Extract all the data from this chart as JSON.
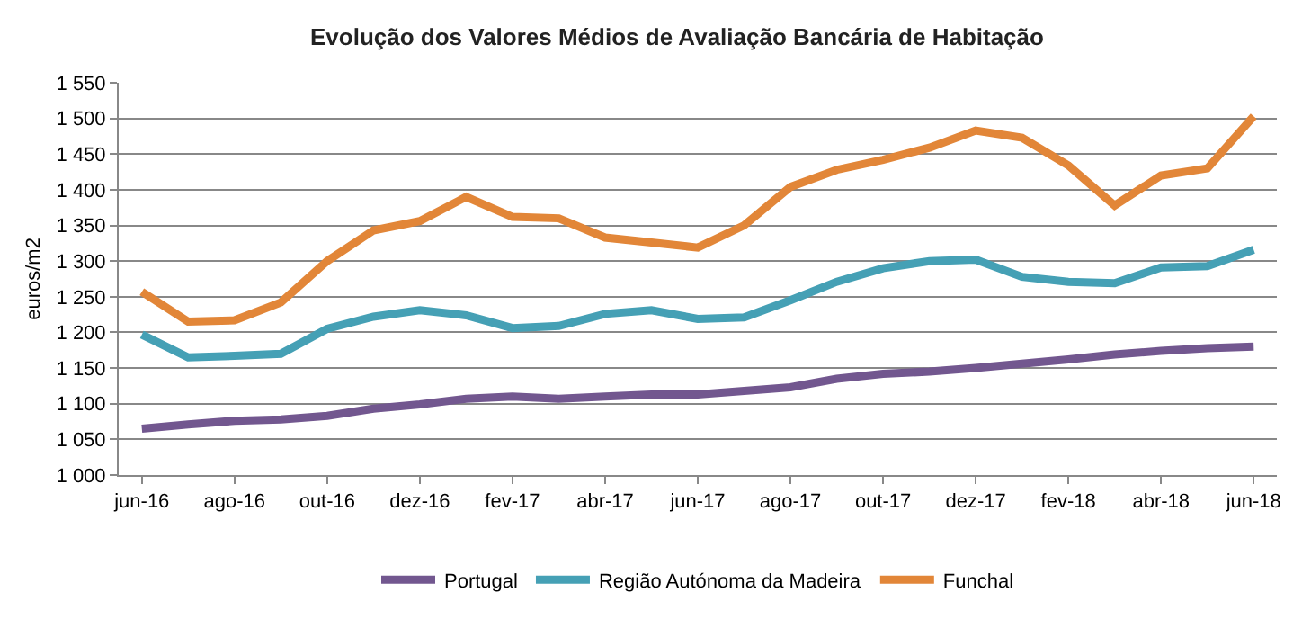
{
  "chart_data": {
    "type": "line",
    "title": "Evolução dos Valores Médios de Avaliação Bancária de Habitação",
    "ylabel": "euros/m2",
    "categories": [
      "jun-16",
      null,
      "ago-16",
      null,
      "out-16",
      null,
      "dez-16",
      null,
      "fev-17",
      null,
      "abr-17",
      null,
      "jun-17",
      null,
      "ago-17",
      null,
      "out-17",
      null,
      "dez-17",
      null,
      "fev-18",
      null,
      "abr-18",
      null,
      "jun-18"
    ],
    "series": [
      {
        "name": "Portugal",
        "color": "#72578f",
        "values": [
          1065,
          1071,
          1076,
          1078,
          1083,
          1093,
          1099,
          1107,
          1110,
          1107,
          1110,
          1113,
          1113,
          1118,
          1123,
          1135,
          1142,
          1145,
          1150,
          1156,
          1162,
          1169,
          1174,
          1178,
          1180
        ]
      },
      {
        "name": "Região Autónoma da Madeira",
        "color": "#45a0b5",
        "values": [
          1197,
          1165,
          1167,
          1170,
          1205,
          1222,
          1231,
          1224,
          1206,
          1209,
          1226,
          1231,
          1219,
          1221,
          1245,
          1271,
          1290,
          1300,
          1302,
          1278,
          1271,
          1269,
          1291,
          1293,
          1316
        ]
      },
      {
        "name": "Funchal",
        "color": "#e28638",
        "values": [
          1257,
          1215,
          1217,
          1242,
          1300,
          1343,
          1356,
          1390,
          1362,
          1360,
          1333,
          1326,
          1319,
          1350,
          1404,
          1428,
          1442,
          1459,
          1483,
          1473,
          1434,
          1378,
          1420,
          1430,
          1503
        ]
      }
    ],
    "ylim": [
      1000,
      1550
    ],
    "yticks": [
      {
        "value": 1000,
        "label": "1 000"
      },
      {
        "value": 1050,
        "label": "1 050"
      },
      {
        "value": 1100,
        "label": "1 100"
      },
      {
        "value": 1150,
        "label": "1 150"
      },
      {
        "value": 1200,
        "label": "1 200"
      },
      {
        "value": 1250,
        "label": "1 250"
      },
      {
        "value": 1300,
        "label": "1 300"
      },
      {
        "value": 1350,
        "label": "1 350"
      },
      {
        "value": 1400,
        "label": "1 400"
      },
      {
        "value": 1450,
        "label": "1 450"
      },
      {
        "value": 1500,
        "label": "1 500"
      },
      {
        "value": 1550,
        "label": "1 550"
      }
    ],
    "grid": "y",
    "legend": "bottom",
    "marker": "none",
    "line_style": "solid"
  }
}
